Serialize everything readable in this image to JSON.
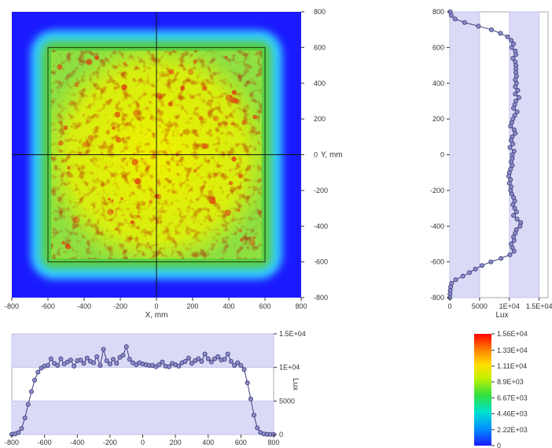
{
  "chart_data": [
    {
      "type": "heatmap",
      "title": "",
      "xlabel": "X, mm",
      "ylabel": "Y, mm",
      "xlim": [
        -800,
        800
      ],
      "ylim": [
        -800,
        800
      ],
      "x_ticks": [
        "-800",
        "-600",
        "-400",
        "-200",
        "0",
        "200",
        "400",
        "600",
        "800"
      ],
      "y_ticks": [
        "800",
        "600",
        "400",
        "200",
        "0",
        "-200",
        "-400",
        "-600",
        "-800"
      ],
      "receiver_square_mm": [
        -600,
        600
      ],
      "crosshair_at": [
        0,
        0
      ],
      "colors": {
        "background": "#1a1aff",
        "edge": "#33ccff",
        "mid": "#5ccf3c",
        "high": "#e8f000",
        "peak": "#e04010"
      }
    },
    {
      "type": "line",
      "title": "",
      "orientation": "vertical",
      "xlabel": "Lux",
      "ylabel": "",
      "xlim": [
        0,
        16500
      ],
      "ylim": [
        -800,
        800
      ],
      "x_ticks": [
        "0",
        "5000",
        "1E+04",
        "1.5E+04"
      ],
      "y_ticks": [
        "800",
        "600",
        "400",
        "200",
        "0",
        "-200",
        "-400",
        "-600",
        "-800"
      ],
      "bands": [
        [
          0,
          5000
        ],
        [
          10000,
          15000
        ]
      ],
      "y": [
        800,
        780,
        760,
        740,
        720,
        700,
        680,
        660,
        640,
        620,
        600,
        580,
        560,
        540,
        520,
        500,
        480,
        460,
        440,
        420,
        400,
        380,
        360,
        340,
        320,
        300,
        280,
        260,
        240,
        220,
        200,
        180,
        160,
        140,
        120,
        100,
        80,
        60,
        40,
        20,
        0,
        -20,
        -40,
        -60,
        -80,
        -100,
        -120,
        -140,
        -160,
        -180,
        -200,
        -220,
        -240,
        -260,
        -280,
        -300,
        -320,
        -340,
        -360,
        -380,
        -400,
        -420,
        -440,
        -460,
        -480,
        -500,
        -520,
        -540,
        -560,
        -580,
        -600,
        -620,
        -640,
        -660,
        -680,
        -700,
        -720,
        -740,
        -760,
        -780,
        -800
      ],
      "values": [
        80,
        250,
        900,
        2500,
        4800,
        7000,
        8500,
        9700,
        10300,
        10700,
        10400,
        11000,
        11100,
        10600,
        11000,
        11100,
        11100,
        11100,
        11200,
        11000,
        11200,
        11000,
        11400,
        11000,
        11600,
        11100,
        10900,
        10700,
        11300,
        10900,
        10600,
        10400,
        10200,
        10800,
        11000,
        10500,
        10300,
        10600,
        10100,
        10800,
        10500,
        10500,
        10300,
        10500,
        10200,
        10000,
        9900,
        10200,
        10000,
        10300,
        10200,
        10400,
        10700,
        10900,
        10600,
        10900,
        11200,
        10700,
        11300,
        11900,
        11800,
        11200,
        11000,
        10700,
        10800,
        10300,
        10500,
        10800,
        10100,
        8600,
        6900,
        5400,
        4300,
        3300,
        2200,
        1000,
        300,
        150,
        80,
        40,
        20
      ],
      "colors": {
        "line": "#3a3a7a",
        "marker": "#8c8cc8",
        "band": "#dadaf6"
      }
    },
    {
      "type": "line",
      "title": "",
      "xlabel": "",
      "ylabel": "Lux",
      "xlim": [
        -800,
        800
      ],
      "ylim": [
        0,
        15000
      ],
      "x_ticks": [
        "-800",
        "-600",
        "-400",
        "-200",
        "0",
        "200",
        "400",
        "600",
        "800"
      ],
      "y_ticks": [
        "0",
        "5000",
        "1E+04",
        "1.5E+04"
      ],
      "bands": [
        [
          0,
          5000
        ],
        [
          10000,
          15000
        ]
      ],
      "x": [
        -800,
        -780,
        -760,
        -740,
        -720,
        -700,
        -680,
        -660,
        -640,
        -620,
        -600,
        -580,
        -560,
        -540,
        -520,
        -500,
        -480,
        -460,
        -440,
        -420,
        -400,
        -380,
        -360,
        -340,
        -320,
        -300,
        -280,
        -260,
        -240,
        -220,
        -200,
        -180,
        -160,
        -140,
        -120,
        -100,
        -80,
        -60,
        -40,
        -20,
        0,
        20,
        40,
        60,
        80,
        100,
        120,
        140,
        160,
        180,
        200,
        220,
        240,
        260,
        280,
        300,
        320,
        340,
        360,
        380,
        400,
        420,
        440,
        460,
        480,
        500,
        520,
        540,
        560,
        580,
        600,
        620,
        640,
        660,
        680,
        700,
        720,
        740,
        760,
        780,
        800
      ],
      "values": [
        50,
        100,
        300,
        900,
        2500,
        4500,
        6400,
        8100,
        9300,
        9900,
        10200,
        10300,
        11300,
        10600,
        10300,
        11300,
        10500,
        10800,
        11100,
        10200,
        11000,
        11100,
        10600,
        11400,
        10900,
        10700,
        11600,
        10300,
        12700,
        11000,
        10500,
        11200,
        10600,
        11500,
        11800,
        13100,
        11200,
        10700,
        10400,
        10700,
        10500,
        10400,
        10300,
        10300,
        10100,
        10400,
        10800,
        10200,
        10100,
        10600,
        10400,
        10200,
        10700,
        10900,
        11400,
        10600,
        11000,
        11300,
        10900,
        12000,
        11300,
        10800,
        11300,
        11600,
        11100,
        11200,
        12000,
        10900,
        10300,
        10700,
        10300,
        9700,
        7700,
        5300,
        2900,
        1000,
        300,
        100,
        50,
        30,
        20
      ],
      "colors": {
        "line": "#3a3a7a",
        "marker": "#8c8cc8",
        "band": "#dadaf6"
      }
    },
    {
      "type": "colorbar",
      "title": "",
      "labels": [
        "1.56E+04",
        "1.33E+04",
        "1.11E+04",
        "8.9E+03",
        "6.67E+03",
        "4.46E+03",
        "2.22E+03",
        "0"
      ],
      "values": [
        15600,
        13300,
        11100,
        8900,
        6670,
        4460,
        2220,
        0
      ],
      "range": [
        0,
        15600
      ],
      "colors": {
        "stops": [
          "#1a1aff",
          "#00c0ff",
          "#00e0a0",
          "#40e040",
          "#c0f000",
          "#ffe000",
          "#ff8000",
          "#ff0000"
        ]
      }
    }
  ]
}
